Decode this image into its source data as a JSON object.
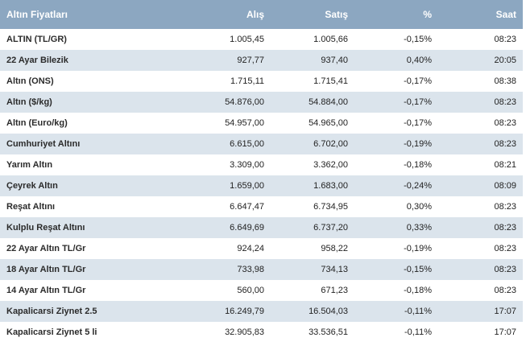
{
  "table": {
    "headers": [
      "Altın Fiyatları",
      "Alış",
      "Satış",
      "%",
      "Saat"
    ],
    "rows": [
      [
        "ALTIN (TL/GR)",
        "1.005,45",
        "1.005,66",
        "-0,15%",
        "08:23"
      ],
      [
        "22 Ayar Bilezik",
        "927,77",
        "937,40",
        "0,40%",
        "20:05"
      ],
      [
        "Altın (ONS)",
        "1.715,11",
        "1.715,41",
        "-0,17%",
        "08:38"
      ],
      [
        "Altın ($/kg)",
        "54.876,00",
        "54.884,00",
        "-0,17%",
        "08:23"
      ],
      [
        "Altın (Euro/kg)",
        "54.957,00",
        "54.965,00",
        "-0,17%",
        "08:23"
      ],
      [
        "Cumhuriyet Altını",
        "6.615,00",
        "6.702,00",
        "-0,19%",
        "08:23"
      ],
      [
        "Yarım Altın",
        "3.309,00",
        "3.362,00",
        "-0,18%",
        "08:21"
      ],
      [
        "Çeyrek Altın",
        "1.659,00",
        "1.683,00",
        "-0,24%",
        "08:09"
      ],
      [
        "Reşat Altını",
        "6.647,47",
        "6.734,95",
        "0,30%",
        "08:23"
      ],
      [
        "Kulplu Reşat Altını",
        "6.649,69",
        "6.737,20",
        "0,33%",
        "08:23"
      ],
      [
        "22 Ayar Altın TL/Gr",
        "924,24",
        "958,22",
        "-0,19%",
        "08:23"
      ],
      [
        "18 Ayar Altın TL/Gr",
        "733,98",
        "734,13",
        "-0,15%",
        "08:23"
      ],
      [
        "14 Ayar Altın TL/Gr",
        "560,00",
        "671,23",
        "-0,18%",
        "08:23"
      ],
      [
        "Kapalicarsi Ziynet 2.5",
        "16.249,79",
        "16.504,03",
        "-0,11%",
        "17:07"
      ],
      [
        "Kapalicarsi Ziynet 5 li",
        "32.905,83",
        "33.536,51",
        "-0,11%",
        "17:07"
      ]
    ]
  },
  "colors": {
    "header_bg": "#8ca7c1",
    "row_alt_bg": "#dbe4ec",
    "row_bg": "#ffffff"
  }
}
